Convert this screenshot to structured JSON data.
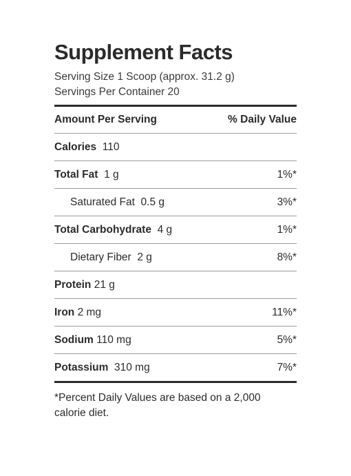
{
  "title": "Supplement Facts",
  "serving_size": "Serving Size 1 Scoop (approx. 31.2 g)",
  "servings_per_container": "Servings Per Container 20",
  "header": {
    "amount": "Amount Per Serving",
    "daily_value": "% Daily Value"
  },
  "rows": [
    {
      "name": "Calories",
      "amount": "110",
      "dv": ""
    },
    {
      "name": "Total Fat",
      "amount": "1 g",
      "dv": "1%*"
    },
    {
      "name": "Saturated Fat",
      "amount": "0.5 g",
      "dv": "3%*"
    },
    {
      "name": "Total Carbohydrate",
      "amount": "4 g",
      "dv": "1%*"
    },
    {
      "name": "Dietary Fiber",
      "amount": "2 g",
      "dv": "8%*"
    },
    {
      "name": "Protein",
      "amount": "21 g",
      "dv": ""
    },
    {
      "name": "Iron",
      "amount": "2 mg",
      "dv": "11%*"
    },
    {
      "name": "Sodium",
      "amount": "110 mg",
      "dv": "5%*"
    },
    {
      "name": "Potassium",
      "amount": "310 mg",
      "dv": "7%*"
    }
  ],
  "footnote": "*Percent Daily Values are based on a 2,000 calorie diet."
}
